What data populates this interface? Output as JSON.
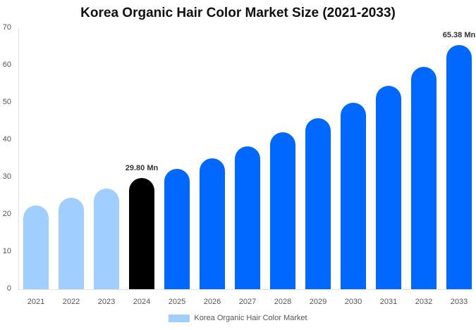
{
  "chart_data": {
    "type": "bar",
    "title": "Korea Organic Hair Color Market Size (2021-2033)",
    "xlabel": "",
    "ylabel": "",
    "ylim": [
      0,
      70
    ],
    "yticks": [
      0,
      10,
      20,
      30,
      40,
      50,
      60,
      70
    ],
    "grid": false,
    "legend_position": "bottom",
    "categories": [
      "2021",
      "2022",
      "2023",
      "2024",
      "2025",
      "2026",
      "2027",
      "2028",
      "2029",
      "2030",
      "2031",
      "2032",
      "2033"
    ],
    "series": [
      {
        "name": "Korea Organic Hair Color Market",
        "values": [
          22.5,
          24.5,
          27.0,
          29.8,
          32.3,
          35.1,
          38.3,
          42.0,
          45.8,
          50.0,
          54.5,
          59.6,
          65.38
        ]
      }
    ],
    "annotations": [
      {
        "category": "2024",
        "text": "29.80 Mn"
      },
      {
        "category": "2033",
        "text": "65.38 Mn"
      }
    ],
    "colors": {
      "historical": "#a0cefe",
      "base_year": "#000000",
      "forecast": "#0068ff",
      "legend": "#a0cefe"
    }
  },
  "legend": {
    "label": "Korea Organic Hair Color Market"
  }
}
